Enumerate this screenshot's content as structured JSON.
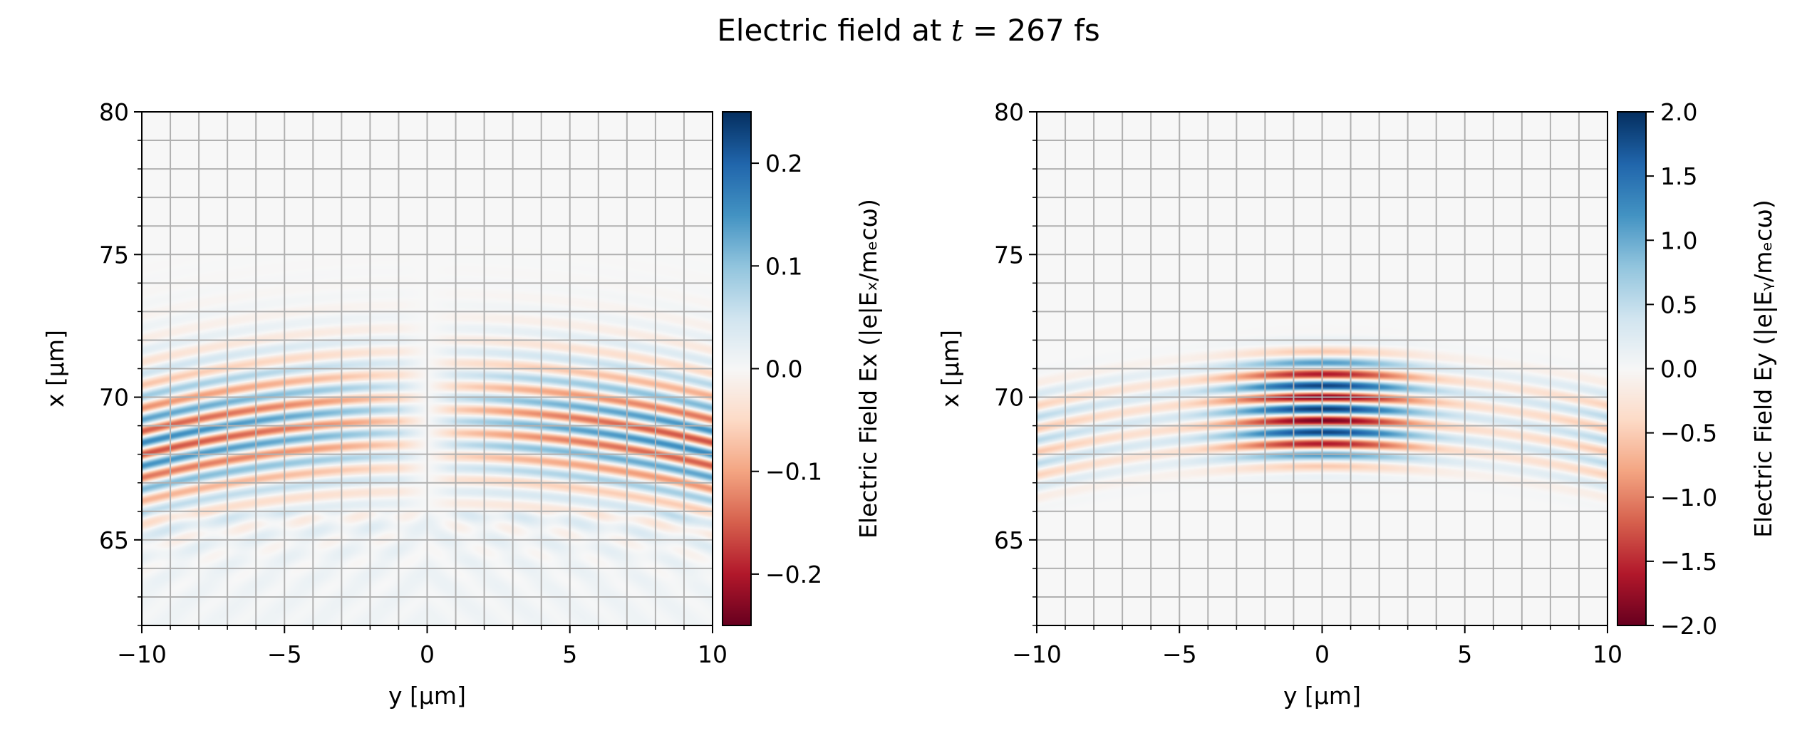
{
  "title": {
    "prefix": "Electric field at ",
    "var": "t",
    "suffix": " = 267 fs"
  },
  "chart_data": [
    {
      "type": "heatmap",
      "field": "Ex",
      "colormap": "RdBu",
      "xlabel": "y [µm]",
      "ylabel": "x [µm]",
      "xlim": [
        -10,
        10
      ],
      "ylim": [
        62,
        80
      ],
      "xticks": [
        -10,
        -5,
        0,
        5,
        10
      ],
      "xtick_labels": [
        "−10",
        "−5",
        "0",
        "5",
        "10"
      ],
      "yticks": [
        65,
        70,
        75,
        80
      ],
      "ytick_labels": [
        "65",
        "70",
        "75",
        "80"
      ],
      "grid": true,
      "colorbar": {
        "label": "Electric Field Ex (|e|Eₓ/mₑcω)",
        "range": [
          -0.25,
          0.25
        ],
        "ticks": [
          -0.2,
          -0.1,
          0.0,
          0.1,
          0.2
        ],
        "tick_labels": [
          "−0.2",
          "−0.1",
          "0.0",
          "0.1",
          "0.2"
        ]
      }
    },
    {
      "type": "heatmap",
      "field": "Ey",
      "colormap": "RdBu",
      "xlabel": "y [µm]",
      "ylabel": "x [µm]",
      "xlim": [
        -10,
        10
      ],
      "ylim": [
        62,
        80
      ],
      "xticks": [
        -10,
        -5,
        0,
        5,
        10
      ],
      "xtick_labels": [
        "−10",
        "−5",
        "0",
        "5",
        "10"
      ],
      "yticks": [
        65,
        70,
        75,
        80
      ],
      "ytick_labels": [
        "65",
        "70",
        "75",
        "80"
      ],
      "grid": true,
      "colorbar": {
        "label": "Electric Field Ey (|e|Eᵧ/mₑcω)",
        "range": [
          -2.0,
          2.0
        ],
        "ticks": [
          -2.0,
          -1.5,
          -1.0,
          -0.5,
          0.0,
          0.5,
          1.0,
          1.5,
          2.0
        ],
        "tick_labels": [
          "−2.0",
          "−1.5",
          "−1.0",
          "−0.5",
          "0.0",
          "0.5",
          "1.0",
          "1.5",
          "2.0"
        ]
      }
    }
  ]
}
